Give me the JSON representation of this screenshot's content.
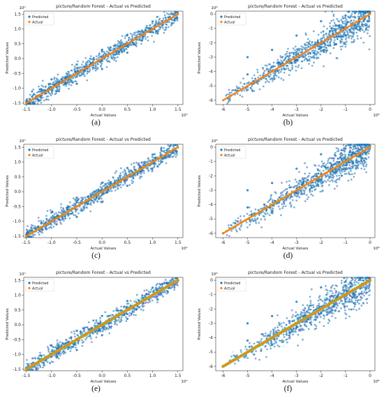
{
  "colors": {
    "predicted": "#1f77b4",
    "actual": "#ff7f0e",
    "overlay_green": "#7ac943",
    "overlay_purple": "#6a4fc9",
    "overlay_cyan": "#9fe8e8"
  },
  "chart_data": [
    {
      "type": "scatter",
      "caption": "(a)",
      "title": "picture/Random Forest - Actual vs Predicted",
      "xlabel": "Actual Values",
      "ylabel": "Predicted Values",
      "scale_label": "10⁰",
      "legend": [
        "Predicted",
        "Actual"
      ],
      "legend_position": "top-left",
      "xlim": [
        -1.55,
        1.6
      ],
      "ylim": [
        -1.55,
        1.6
      ],
      "xticks": [
        -1.5,
        -1.0,
        -0.5,
        0.0,
        0.5,
        1.0,
        1.5
      ],
      "yticks": [
        -1.5,
        -1.0,
        -0.5,
        0.0,
        0.5,
        1.0,
        1.5
      ],
      "xtick_labels": [
        "-1.5",
        "-1.0",
        "-0.5",
        "0.0",
        "0.5",
        "1.0",
        "1.5"
      ],
      "ytick_labels": [
        "-1.5",
        "-1.0",
        "-0.5",
        "0.0",
        "0.5",
        "1.0",
        "1.5"
      ],
      "actual_range": [
        -1.5,
        1.5
      ],
      "spread": 0.13,
      "overlay": "none",
      "series": [
        {
          "name": "Predicted",
          "points": [
            [
              -1.5,
              -1.45
            ],
            [
              -1.2,
              -1.05
            ],
            [
              -1.0,
              -0.7
            ],
            [
              -0.9,
              -1.1
            ],
            [
              -0.5,
              -0.2
            ],
            [
              -0.5,
              -0.85
            ],
            [
              0.0,
              0.3
            ],
            [
              0.0,
              -0.35
            ],
            [
              0.5,
              0.8
            ],
            [
              0.5,
              0.2
            ],
            [
              1.0,
              1.25
            ],
            [
              1.1,
              0.85
            ],
            [
              1.2,
              1.2
            ],
            [
              1.5,
              1.5
            ]
          ]
        },
        {
          "name": "Actual",
          "points": [
            [
              -1.5,
              -1.5
            ],
            [
              -1.0,
              -1.0
            ],
            [
              -0.5,
              -0.5
            ],
            [
              0.0,
              0.0
            ],
            [
              0.5,
              0.5
            ],
            [
              1.0,
              1.0
            ],
            [
              1.5,
              1.5
            ]
          ]
        }
      ]
    },
    {
      "type": "scatter",
      "caption": "(b)",
      "title": "picture/Random Forest - Actual vs Predicted",
      "xlabel": "Actual Values",
      "ylabel": "Predicted Values",
      "scale_label": "10⁸",
      "legend": [
        "Predicted",
        "Actual"
      ],
      "legend_position": "top-left",
      "xlim": [
        -6.3,
        0.2
      ],
      "ylim": [
        -6.3,
        0.2
      ],
      "xticks": [
        -6,
        -5,
        -4,
        -3,
        -2,
        -1,
        0
      ],
      "yticks": [
        -6,
        -5,
        -4,
        -3,
        -2,
        -1,
        0
      ],
      "xtick_labels": [
        "-6",
        "-5",
        "-4",
        "-3",
        "-2",
        "-1",
        "0"
      ],
      "ytick_labels": [
        "-6",
        "-5",
        "-4",
        "-3",
        "-2",
        "-1",
        "0"
      ],
      "actual_range": [
        -6.0,
        0.0
      ],
      "spread": 0.55,
      "overlay": "none",
      "series": [
        {
          "name": "Predicted",
          "points": [
            [
              -5.5,
              -5.3
            ],
            [
              -5.0,
              -4.2
            ],
            [
              -5.0,
              -3.0
            ],
            [
              -4.0,
              -2.5
            ],
            [
              -4.0,
              -4.5
            ],
            [
              -3.0,
              -1.5
            ],
            [
              -3.0,
              -3.2
            ],
            [
              -2.0,
              -0.5
            ],
            [
              -2.0,
              -2.3
            ],
            [
              -1.0,
              -0.1
            ],
            [
              -1.0,
              -1.5
            ],
            [
              0.0,
              0.1
            ]
          ]
        },
        {
          "name": "Actual",
          "points": [
            [
              -6,
              -6
            ],
            [
              -5,
              -5
            ],
            [
              -4,
              -4
            ],
            [
              -3,
              -3
            ],
            [
              -2,
              -2
            ],
            [
              -1,
              -1
            ],
            [
              0,
              0
            ]
          ]
        }
      ]
    },
    {
      "type": "scatter",
      "caption": "(c)",
      "title": "picture/Random Forest - Actual vs Predicted",
      "xlabel": "Actual Values",
      "ylabel": "Predicted Values",
      "scale_label": "10⁰",
      "legend": [
        "Predicted",
        "Actual"
      ],
      "legend_position": "top-left",
      "xlim": [
        -1.55,
        1.6
      ],
      "ylim": [
        -1.55,
        1.6
      ],
      "xticks": [
        -1.5,
        -1.0,
        -0.5,
        0.0,
        0.5,
        1.0,
        1.5
      ],
      "yticks": [
        -1.5,
        -1.0,
        -0.5,
        0.0,
        0.5,
        1.0,
        1.5
      ],
      "xtick_labels": [
        "-1.5",
        "-1.0",
        "-0.5",
        "0.0",
        "0.5",
        "1.0",
        "1.5"
      ],
      "ytick_labels": [
        "-1.5",
        "-1.0",
        "-0.5",
        "0.0",
        "0.5",
        "1.0",
        "1.5"
      ],
      "actual_range": [
        -1.5,
        1.5
      ],
      "spread": 0.13,
      "overlay": "light",
      "series": [
        {
          "name": "Predicted",
          "points": [
            [
              -1.5,
              -1.45
            ],
            [
              -1.2,
              -1.05
            ],
            [
              -1.0,
              -0.7
            ],
            [
              -0.9,
              -1.1
            ],
            [
              -0.5,
              -0.2
            ],
            [
              -0.5,
              -0.85
            ],
            [
              0.0,
              0.3
            ],
            [
              0.0,
              -0.35
            ],
            [
              0.5,
              0.8
            ],
            [
              0.5,
              0.2
            ],
            [
              1.0,
              1.25
            ],
            [
              1.1,
              0.85
            ],
            [
              1.2,
              1.2
            ],
            [
              1.5,
              1.5
            ]
          ]
        },
        {
          "name": "Actual",
          "points": [
            [
              -1.5,
              -1.5
            ],
            [
              -1.0,
              -1.0
            ],
            [
              -0.5,
              -0.5
            ],
            [
              0.0,
              0.0
            ],
            [
              0.5,
              0.5
            ],
            [
              1.0,
              1.0
            ],
            [
              1.5,
              1.5
            ]
          ]
        }
      ]
    },
    {
      "type": "scatter",
      "caption": "(d)",
      "title": "picture/Random Forest - Actual vs Predicted",
      "xlabel": "Actual Values",
      "ylabel": "Predicted Values",
      "scale_label": "10⁸",
      "legend": [
        "Predicted",
        "Actual"
      ],
      "legend_position": "top-left",
      "xlim": [
        -6.3,
        0.2
      ],
      "ylim": [
        -6.3,
        0.2
      ],
      "xticks": [
        -6,
        -5,
        -4,
        -3,
        -2,
        -1,
        0
      ],
      "yticks": [
        -6,
        -5,
        -4,
        -3,
        -2,
        -1,
        0
      ],
      "xtick_labels": [
        "-6",
        "-5",
        "-4",
        "-3",
        "-2",
        "-1",
        "0"
      ],
      "ytick_labels": [
        "-6",
        "-5",
        "-4",
        "-3",
        "-2",
        "-1",
        "0"
      ],
      "actual_range": [
        -6.0,
        0.0
      ],
      "spread": 0.55,
      "overlay": "light",
      "series": [
        {
          "name": "Predicted",
          "points": [
            [
              -5.5,
              -5.3
            ],
            [
              -5.0,
              -4.2
            ],
            [
              -5.0,
              -3.0
            ],
            [
              -4.0,
              -2.5
            ],
            [
              -4.0,
              -4.5
            ],
            [
              -3.0,
              -1.5
            ],
            [
              -3.0,
              -3.2
            ],
            [
              -2.0,
              -0.5
            ],
            [
              -2.0,
              -2.3
            ],
            [
              -1.0,
              -0.1
            ],
            [
              -1.0,
              -1.5
            ],
            [
              0.0,
              0.1
            ]
          ]
        },
        {
          "name": "Actual",
          "points": [
            [
              -6,
              -6
            ],
            [
              -5,
              -5
            ],
            [
              -4,
              -4
            ],
            [
              -3,
              -3
            ],
            [
              -2,
              -2
            ],
            [
              -1,
              -1
            ],
            [
              0,
              0
            ]
          ]
        }
      ]
    },
    {
      "type": "scatter",
      "caption": "(e)",
      "title": "picture/Random Forest - Actual vs Predicted",
      "xlabel": "Actual Values",
      "ylabel": "Predicted Values",
      "scale_label": "10⁰",
      "legend": [
        "Predicted",
        "Actual"
      ],
      "legend_position": "top-left",
      "xlim": [
        -1.55,
        1.6
      ],
      "ylim": [
        -1.55,
        1.6
      ],
      "xticks": [
        -1.5,
        -1.0,
        -0.5,
        0.0,
        0.5,
        1.0,
        1.5
      ],
      "yticks": [
        -1.5,
        -1.0,
        -0.5,
        0.0,
        0.5,
        1.0,
        1.5
      ],
      "xtick_labels": [
        "-1.5",
        "-1.0",
        "-0.5",
        "0.0",
        "0.5",
        "1.0",
        "1.5"
      ],
      "ytick_labels": [
        "-1.5",
        "-1.0",
        "-0.5",
        "0.0",
        "0.5",
        "1.0",
        "1.5"
      ],
      "actual_range": [
        -1.5,
        1.5
      ],
      "spread": 0.13,
      "overlay": "heavy",
      "series": [
        {
          "name": "Predicted",
          "points": [
            [
              -1.5,
              -1.45
            ],
            [
              -1.2,
              -1.05
            ],
            [
              -1.0,
              -0.7
            ],
            [
              -0.9,
              -1.1
            ],
            [
              -0.5,
              -0.2
            ],
            [
              -0.5,
              -0.85
            ],
            [
              0.0,
              0.3
            ],
            [
              0.0,
              -0.35
            ],
            [
              0.5,
              0.8
            ],
            [
              0.5,
              0.2
            ],
            [
              1.0,
              1.25
            ],
            [
              1.1,
              0.85
            ],
            [
              1.2,
              1.2
            ],
            [
              1.5,
              1.5
            ]
          ]
        },
        {
          "name": "Actual",
          "points": [
            [
              -1.5,
              -1.5
            ],
            [
              -1.0,
              -1.0
            ],
            [
              -0.5,
              -0.5
            ],
            [
              0.0,
              0.0
            ],
            [
              0.5,
              0.5
            ],
            [
              1.0,
              1.0
            ],
            [
              1.5,
              1.5
            ]
          ]
        }
      ]
    },
    {
      "type": "scatter",
      "caption": "(f)",
      "title": "picture/Random Forest - Actual vs Predicted",
      "xlabel": "Actual Values",
      "ylabel": "Predicted Values",
      "scale_label": "10⁸",
      "legend": [
        "Predicted",
        "Actual"
      ],
      "legend_position": "top-left",
      "xlim": [
        -6.3,
        0.2
      ],
      "ylim": [
        -6.3,
        0.2
      ],
      "xticks": [
        -6,
        -5,
        -4,
        -3,
        -2,
        -1,
        0
      ],
      "yticks": [
        -6,
        -5,
        -4,
        -3,
        -2,
        -1,
        0
      ],
      "xtick_labels": [
        "-6",
        "-5",
        "-4",
        "-3",
        "-2",
        "-1",
        "0"
      ],
      "ytick_labels": [
        "-6",
        "-5",
        "-4",
        "-3",
        "-2",
        "-1",
        "0"
      ],
      "actual_range": [
        -6.0,
        0.0
      ],
      "spread": 0.55,
      "overlay": "heavy",
      "series": [
        {
          "name": "Predicted",
          "points": [
            [
              -5.5,
              -5.3
            ],
            [
              -5.0,
              -4.2
            ],
            [
              -5.0,
              -3.0
            ],
            [
              -4.0,
              -2.5
            ],
            [
              -4.0,
              -4.5
            ],
            [
              -3.0,
              -1.5
            ],
            [
              -3.0,
              -3.2
            ],
            [
              -2.0,
              -0.5
            ],
            [
              -2.0,
              -2.3
            ],
            [
              -1.0,
              -0.1
            ],
            [
              -1.0,
              -1.5
            ],
            [
              0.0,
              0.1
            ]
          ]
        },
        {
          "name": "Actual",
          "points": [
            [
              -6,
              -6
            ],
            [
              -5,
              -5
            ],
            [
              -4,
              -4
            ],
            [
              -3,
              -3
            ],
            [
              -2,
              -2
            ],
            [
              -1,
              -1
            ],
            [
              0,
              0
            ]
          ]
        }
      ]
    }
  ]
}
